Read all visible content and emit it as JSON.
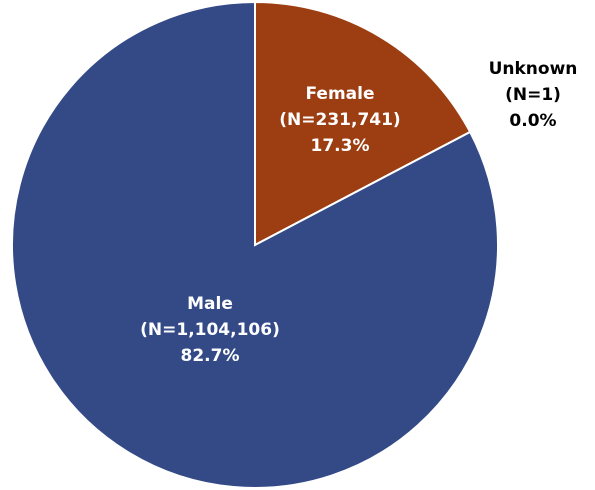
{
  "chart_data": {
    "type": "pie",
    "categories": [
      "Female",
      "Unknown",
      "Male"
    ],
    "count_labels": [
      "(N=231,741)",
      "(N=1)",
      "(N=1,104,106)"
    ],
    "values": [
      17.3,
      0.0,
      82.7
    ],
    "value_labels": [
      "17.3%",
      "0.0%",
      "82.7%"
    ],
    "colors": [
      "#9c3d12",
      "#9c9c9c",
      "#334a87"
    ]
  }
}
